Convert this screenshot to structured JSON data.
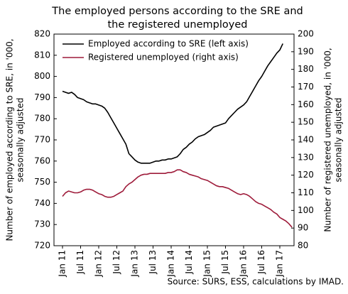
{
  "chart_data": {
    "type": "line",
    "title": [
      "The employed persons according to the SRE and",
      "the registered unemployed"
    ],
    "ylabel": [
      "Number of employed according to SRE, in '000,",
      "seasonally adjusted"
    ],
    "y2label": [
      "Number of registered unemployed, in '000,",
      "seasonally adjusted"
    ],
    "source": "Source: SURS, ESS, calculations by IMAD.",
    "legend": "upper left",
    "categories": [
      "Jan 11",
      null,
      null,
      null,
      null,
      null,
      "Jul 11",
      null,
      null,
      null,
      null,
      null,
      "Jan 12",
      null,
      null,
      null,
      null,
      null,
      "Jul 12",
      null,
      null,
      null,
      null,
      null,
      "Jan 13",
      null,
      null,
      null,
      null,
      null,
      "Jul 13",
      null,
      null,
      null,
      null,
      null,
      "Jan 14",
      null,
      null,
      null,
      null,
      null,
      "Jul 14",
      null,
      null,
      null,
      null,
      null,
      "Jan 15",
      null,
      null,
      null,
      null,
      null,
      "Jul 15",
      null,
      null,
      null,
      null,
      null,
      "Jan 16",
      null,
      null,
      null,
      null,
      null,
      "Jul 16",
      null,
      null,
      null,
      null,
      null,
      "Jan 17",
      null,
      null,
      null,
      null
    ],
    "ylim": [
      720,
      820
    ],
    "yticks": [
      720,
      730,
      740,
      750,
      760,
      770,
      780,
      790,
      800,
      810,
      820
    ],
    "y2lim": [
      80,
      200
    ],
    "y2ticks": [
      80,
      90,
      100,
      110,
      120,
      130,
      140,
      150,
      160,
      170,
      180,
      190,
      200
    ],
    "series": [
      {
        "name": "Employed according to SRE (left axis)",
        "color": "#000000",
        "axis": "y",
        "values": [
          793,
          792.5,
          792,
          792.5,
          791.5,
          790,
          789.5,
          789,
          788,
          787.5,
          787,
          787,
          786.5,
          786,
          785,
          783,
          780.5,
          778,
          775.5,
          773,
          770.5,
          768,
          763.5,
          762,
          760.5,
          759.5,
          759,
          759,
          759,
          759,
          759.5,
          760,
          760,
          760.5,
          760.5,
          761,
          761,
          761.5,
          762,
          763.5,
          765.5,
          766.5,
          768,
          769,
          770.5,
          771.5,
          772,
          772.5,
          773.5,
          774.5,
          776,
          776.5,
          777,
          777.5,
          778,
          780,
          781.5,
          783,
          784.5,
          785.5,
          786.5,
          788,
          790.5,
          793,
          795.5,
          798,
          800,
          802.5,
          805,
          807,
          809,
          811,
          812.5,
          815.5,
          null,
          null,
          null
        ]
      },
      {
        "name": "Registered unemployed (right axis)",
        "color": "#9e1b3a",
        "axis": "y2",
        "values": [
          108,
          110,
          111,
          110.5,
          110,
          110,
          110.5,
          111.5,
          112,
          112,
          111.5,
          110.5,
          109.5,
          109,
          108,
          107.5,
          107.5,
          108,
          109,
          110,
          111,
          113.5,
          115,
          116,
          117.5,
          119,
          120,
          120.5,
          120.5,
          121,
          121,
          121,
          121,
          121,
          121,
          121.5,
          121.5,
          122,
          123,
          123,
          122,
          121.5,
          120.5,
          120,
          119.5,
          119,
          118,
          117.5,
          117,
          116,
          115,
          114,
          113.5,
          113.5,
          113,
          112.5,
          111.5,
          110.5,
          109.5,
          109,
          109.5,
          109,
          108,
          106.5,
          105,
          104,
          103.5,
          102.5,
          101.5,
          100.5,
          99,
          98,
          96,
          95,
          94,
          92.5,
          90.5
        ]
      }
    ]
  }
}
